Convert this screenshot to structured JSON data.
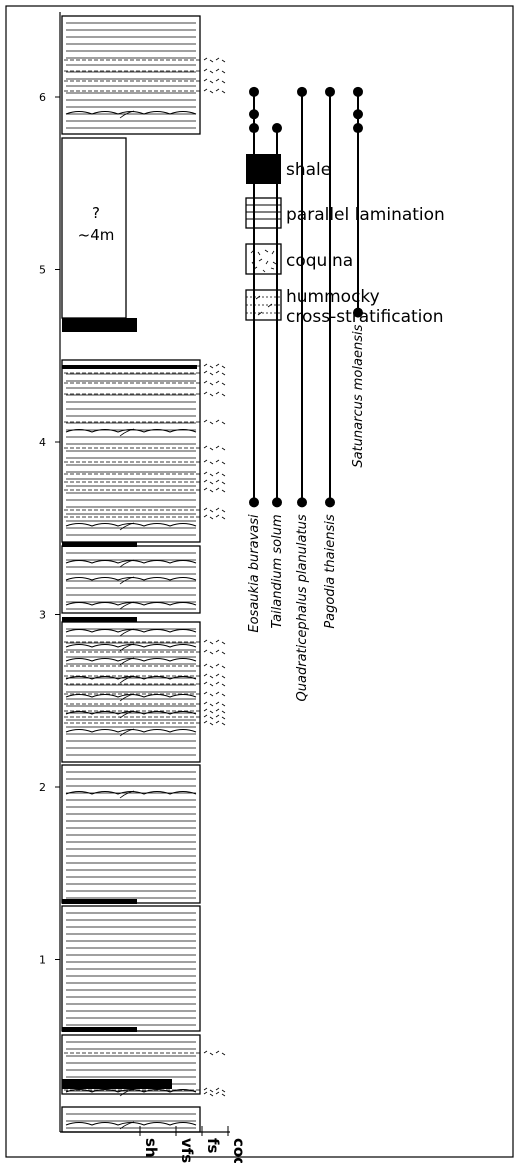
{
  "legend": {
    "shale": "shale",
    "parallel_lamination": "parallel lamination",
    "coquina": "coquina",
    "hummocky_line1": "hummocky",
    "hummocky_line2": "cross-stratification"
  },
  "gap": {
    "question": "?",
    "thickness": "~4m"
  },
  "axis": {
    "ticks": [
      {
        "label": "1",
        "value": 1
      },
      {
        "label": "2",
        "value": 2
      },
      {
        "label": "3",
        "value": 3
      },
      {
        "label": "4",
        "value": 4
      },
      {
        "label": "5",
        "value": 5
      },
      {
        "label": "6",
        "value": 6
      }
    ],
    "grain": [
      "sh",
      "vfs",
      "fs",
      "coq"
    ]
  },
  "species": [
    {
      "name": "Eosaukia buravasi",
      "bottom_m": 3.65,
      "dots_m": [
        3.65,
        5.82,
        5.9,
        6.03
      ]
    },
    {
      "name": "Tailandium solum",
      "bottom_m": 3.65,
      "dots_m": [
        3.65,
        5.82
      ]
    },
    {
      "name": "Quadraticephalus planulatus",
      "bottom_m": 3.65,
      "dots_m": [
        3.65,
        6.03
      ]
    },
    {
      "name": "Pagodia thaiensis",
      "bottom_m": 3.65,
      "dots_m": [
        3.65,
        6.03
      ]
    },
    {
      "name": "Satunarcus molaensis",
      "bottom_m": 4.75,
      "dots_m": [
        4.75,
        5.82,
        5.9,
        6.03
      ]
    }
  ]
}
